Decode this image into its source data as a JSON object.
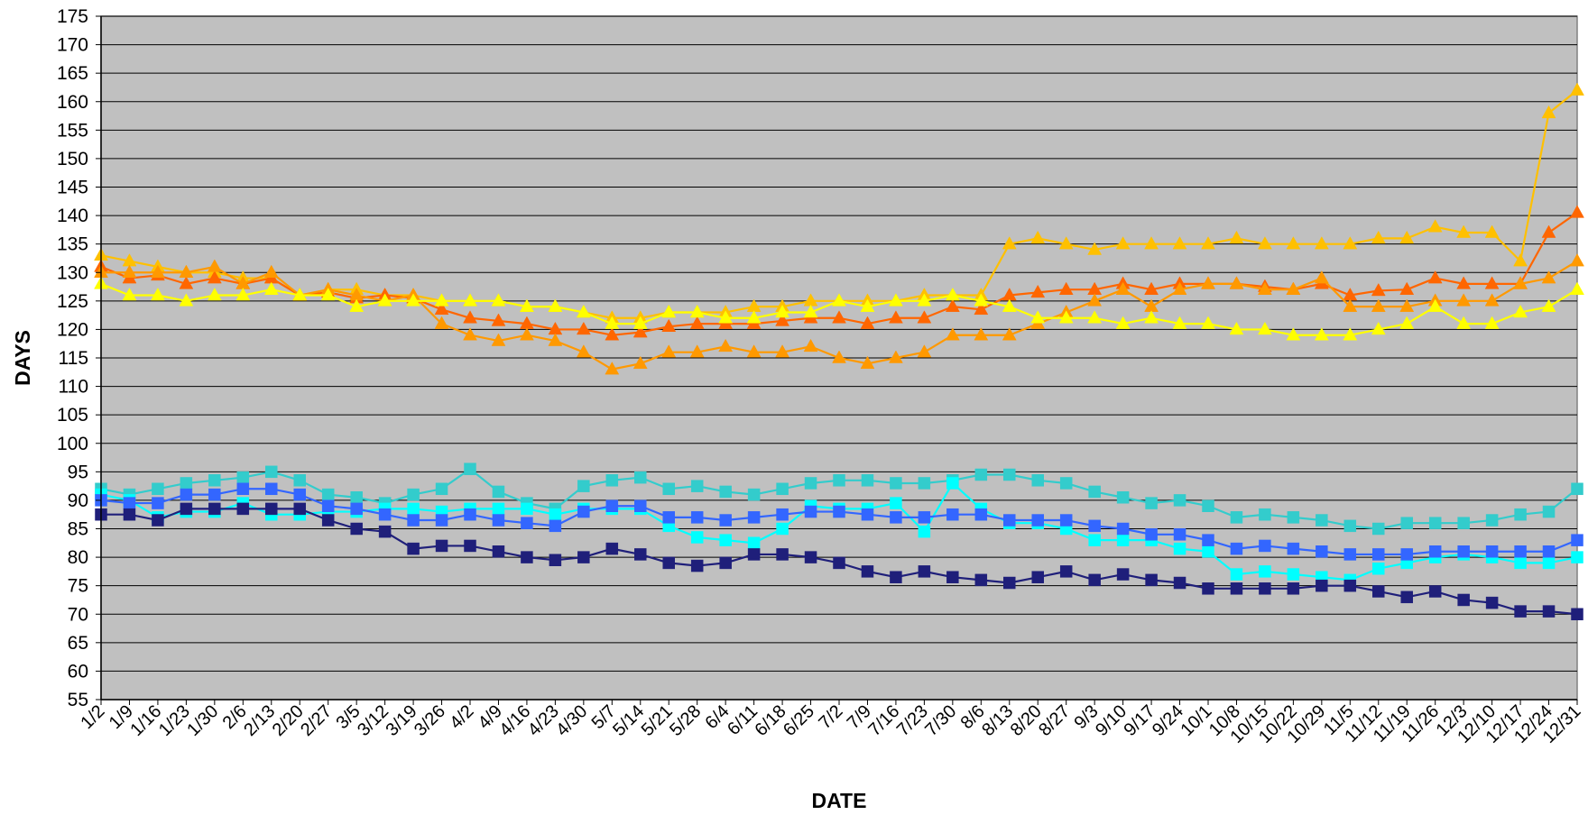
{
  "chart_data": {
    "type": "line",
    "title": "",
    "xlabel": "DATE",
    "ylabel": "DAYS",
    "ylim": [
      55,
      175
    ],
    "ytick_step": 5,
    "grid": "horizontal",
    "background_color": "#C0C0C0",
    "x": [
      "1/2",
      "1/9",
      "1/16",
      "1/23",
      "1/30",
      "2/6",
      "2/13",
      "2/20",
      "2/27",
      "3/5",
      "3/12",
      "3/19",
      "3/26",
      "4/2",
      "4/9",
      "4/16",
      "4/23",
      "4/30",
      "5/7",
      "5/14",
      "5/21",
      "5/28",
      "6/4",
      "6/11",
      "6/18",
      "6/25",
      "7/2",
      "7/9",
      "7/16",
      "7/23",
      "7/30",
      "8/6",
      "8/13",
      "8/20",
      "8/27",
      "9/3",
      "9/10",
      "9/17",
      "9/24",
      "10/1",
      "10/8",
      "10/15",
      "10/22",
      "10/29",
      "11/5",
      "11/12",
      "11/19",
      "11/26",
      "12/3",
      "12/10",
      "12/17",
      "12/24",
      "12/31"
    ],
    "series": [
      {
        "marker": "triangle",
        "color": "#FFC000",
        "values": [
          133,
          132,
          131,
          130,
          130,
          129,
          129,
          126,
          127,
          127,
          126,
          126,
          125,
          125,
          125,
          124,
          124,
          123,
          122,
          122,
          123,
          123,
          123,
          124,
          124,
          125,
          125,
          125,
          125,
          126,
          126,
          126,
          135,
          136,
          135,
          134,
          135,
          135,
          135,
          135,
          136,
          135,
          135,
          135,
          135,
          136,
          136,
          138,
          137,
          137,
          132,
          158,
          162
        ]
      },
      {
        "marker": "triangle",
        "color": "#FF6600",
        "values": [
          131,
          129,
          129.5,
          128,
          129,
          128,
          129,
          126,
          126.5,
          125.5,
          126,
          125.5,
          123.5,
          122,
          121.5,
          121,
          120,
          120,
          119,
          119.5,
          120.5,
          121,
          121,
          121,
          121.5,
          122,
          122,
          121,
          122,
          122,
          124,
          123.5,
          126,
          126.5,
          127,
          127,
          128,
          127,
          128,
          128,
          128,
          127.5,
          127,
          128,
          126,
          126.8,
          127,
          129,
          128,
          128,
          128,
          137,
          140.5
        ]
      },
      {
        "marker": "triangle",
        "color": "#FF9900",
        "values": [
          130,
          130,
          130,
          130,
          131,
          128,
          130,
          126,
          127,
          126,
          125,
          126,
          121,
          119,
          118,
          119,
          118,
          116,
          113,
          114,
          116,
          116,
          117,
          116,
          116,
          117,
          115,
          114,
          115,
          116,
          119,
          119,
          119,
          121,
          123,
          125,
          127,
          124,
          127,
          128,
          128,
          127,
          127,
          129,
          124,
          124,
          124,
          125,
          125,
          125,
          128,
          129,
          132
        ]
      },
      {
        "marker": "triangle",
        "color": "#FFFF00",
        "values": [
          128,
          126,
          126,
          125,
          126,
          126,
          127,
          126,
          126,
          124,
          125,
          125,
          125,
          125,
          125,
          124,
          124,
          123,
          121,
          121,
          123,
          123,
          122,
          122,
          123,
          123,
          125,
          124,
          125,
          125,
          126,
          125,
          124,
          122,
          122,
          122,
          121,
          122,
          121,
          121,
          120,
          120,
          119,
          119,
          119,
          120,
          121,
          124,
          121,
          121,
          123,
          124,
          127
        ]
      },
      {
        "marker": "square",
        "color": "#33CCCC",
        "values": [
          92,
          91,
          92,
          93,
          93.5,
          94,
          95,
          93.5,
          91,
          90.5,
          89.5,
          91,
          92,
          95.5,
          91.5,
          89.5,
          88.5,
          92.5,
          93.5,
          94,
          92,
          92.5,
          91.5,
          91,
          92,
          93,
          93.5,
          93.5,
          93,
          93,
          93.5,
          94.5,
          94.5,
          93.5,
          93,
          91.5,
          90.5,
          89.5,
          90,
          89,
          87,
          87.5,
          87,
          86.5,
          85.5,
          85,
          86,
          86,
          86,
          86.5,
          87.5,
          88,
          92
        ]
      },
      {
        "marker": "square",
        "color": "#00FFFF",
        "values": [
          91,
          90,
          87,
          88,
          88,
          89.5,
          87.5,
          87.5,
          88,
          88,
          88.5,
          88.5,
          88,
          88.5,
          88.5,
          88.5,
          87.5,
          88.5,
          88.5,
          88.5,
          85.5,
          83.5,
          83,
          82.5,
          85,
          89,
          88.5,
          88.5,
          89.5,
          84.5,
          93,
          88.5,
          86,
          86,
          85,
          83,
          83,
          83,
          81.5,
          81,
          77,
          77.5,
          77,
          76.5,
          76,
          78,
          79,
          80,
          80.5,
          80,
          79,
          79,
          80
        ]
      },
      {
        "marker": "square",
        "color": "#3366FF",
        "values": [
          90,
          89.5,
          89.5,
          91,
          91,
          92,
          92,
          91,
          89,
          88.5,
          87.5,
          86.5,
          86.5,
          87.5,
          86.5,
          86,
          85.5,
          88,
          89,
          89,
          87,
          87,
          86.5,
          87,
          87.5,
          88,
          88,
          87.5,
          87,
          87,
          87.5,
          87.5,
          86.5,
          86.5,
          86.5,
          85.5,
          85,
          84,
          84,
          83,
          81.5,
          82,
          81.5,
          81,
          80.5,
          80.5,
          80.5,
          81,
          81,
          81,
          81,
          81,
          83
        ]
      },
      {
        "marker": "square",
        "color": "#1F1F7A",
        "values": [
          87.5,
          87.5,
          86.5,
          88.5,
          88.5,
          88.5,
          88.5,
          88.5,
          86.5,
          85,
          84.5,
          81.5,
          82,
          82,
          81,
          80,
          79.5,
          80,
          81.5,
          80.5,
          79,
          78.5,
          79,
          80.5,
          80.5,
          80,
          79,
          77.5,
          76.5,
          77.5,
          76.5,
          76,
          75.5,
          76.5,
          77.5,
          76,
          77,
          76,
          75.5,
          74.5,
          74.5,
          74.5,
          74.5,
          75,
          75,
          74,
          73,
          74,
          72.5,
          72,
          70.5,
          70.5,
          70
        ]
      }
    ]
  }
}
